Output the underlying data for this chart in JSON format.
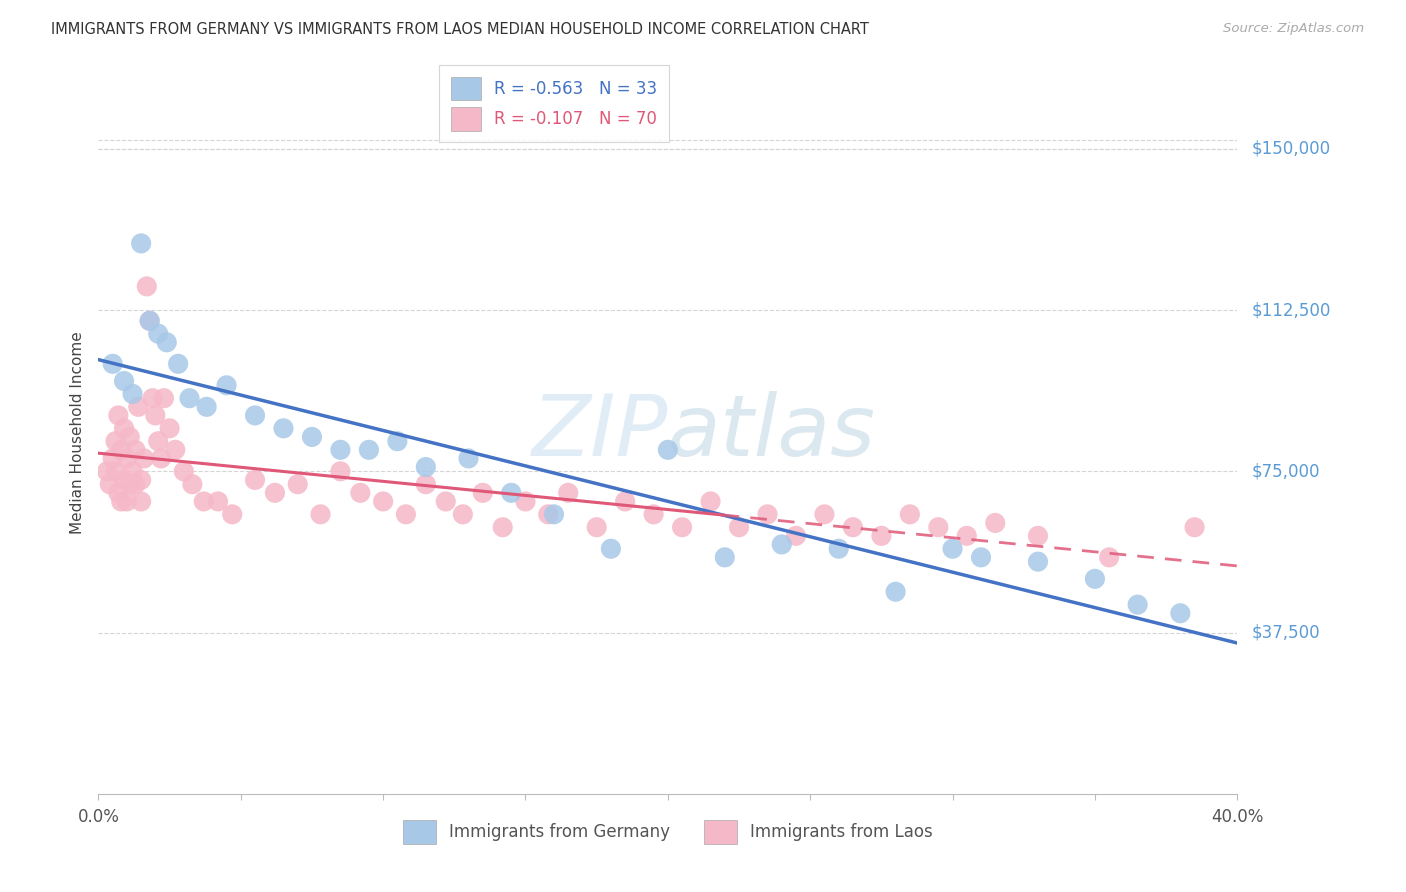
{
  "title": "IMMIGRANTS FROM GERMANY VS IMMIGRANTS FROM LAOS MEDIAN HOUSEHOLD INCOME CORRELATION CHART",
  "source": "Source: ZipAtlas.com",
  "ylabel": "Median Household Income",
  "xmin": 0.0,
  "xmax": 40.0,
  "ymin": 0,
  "ymax": 168000,
  "ytick_vals": [
    37500,
    75000,
    112500,
    150000
  ],
  "ytick_labels": [
    "$37,500",
    "$75,000",
    "$112,500",
    "$150,000"
  ],
  "germany_dot_color": "#a8c8e8",
  "laos_dot_color": "#f5b8c8",
  "germany_line_color": "#4472c4",
  "laos_line_color": "#e05878",
  "axis_label_color": "#5b9bd5",
  "R_germany": -0.563,
  "N_germany": 33,
  "R_laos": -0.107,
  "N_laos": 70,
  "legend_label_germany": "Immigrants from Germany",
  "legend_label_laos": "Immigrants from Laos",
  "watermark_zip": "ZIP",
  "watermark_atlas": "atlas",
  "germany_x": [
    0.5,
    0.9,
    1.2,
    1.5,
    1.8,
    2.1,
    2.4,
    2.8,
    3.2,
    3.8,
    4.5,
    5.5,
    6.5,
    7.5,
    8.5,
    9.5,
    10.5,
    11.5,
    13.0,
    14.5,
    16.0,
    18.0,
    20.0,
    22.0,
    24.0,
    26.0,
    28.0,
    30.0,
    31.0,
    33.0,
    35.0,
    36.5,
    38.0
  ],
  "germany_y": [
    100000,
    96000,
    93000,
    128000,
    110000,
    107000,
    105000,
    100000,
    92000,
    90000,
    95000,
    88000,
    85000,
    83000,
    80000,
    80000,
    82000,
    76000,
    78000,
    70000,
    65000,
    57000,
    80000,
    55000,
    58000,
    57000,
    47000,
    57000,
    55000,
    54000,
    50000,
    44000,
    42000
  ],
  "laos_x": [
    0.3,
    0.4,
    0.5,
    0.6,
    0.6,
    0.7,
    0.7,
    0.8,
    0.8,
    0.9,
    0.9,
    1.0,
    1.0,
    1.1,
    1.1,
    1.2,
    1.3,
    1.3,
    1.4,
    1.5,
    1.5,
    1.6,
    1.7,
    1.8,
    1.9,
    2.0,
    2.1,
    2.2,
    2.3,
    2.5,
    2.7,
    3.0,
    3.3,
    3.7,
    4.2,
    4.7,
    5.5,
    6.2,
    7.0,
    7.8,
    8.5,
    9.2,
    10.0,
    10.8,
    11.5,
    12.2,
    12.8,
    13.5,
    14.2,
    15.0,
    15.8,
    16.5,
    17.5,
    18.5,
    19.5,
    20.5,
    21.5,
    22.5,
    23.5,
    24.5,
    25.5,
    26.5,
    27.5,
    28.5,
    29.5,
    30.5,
    31.5,
    33.0,
    35.5,
    38.5
  ],
  "laos_y": [
    75000,
    72000,
    78000,
    82000,
    75000,
    88000,
    70000,
    80000,
    68000,
    85000,
    73000,
    78000,
    68000,
    83000,
    72000,
    75000,
    80000,
    72000,
    90000,
    73000,
    68000,
    78000,
    118000,
    110000,
    92000,
    88000,
    82000,
    78000,
    92000,
    85000,
    80000,
    75000,
    72000,
    68000,
    68000,
    65000,
    73000,
    70000,
    72000,
    65000,
    75000,
    70000,
    68000,
    65000,
    72000,
    68000,
    65000,
    70000,
    62000,
    68000,
    65000,
    70000,
    62000,
    68000,
    65000,
    62000,
    68000,
    62000,
    65000,
    60000,
    65000,
    62000,
    60000,
    65000,
    62000,
    60000,
    63000,
    60000,
    55000,
    62000
  ]
}
